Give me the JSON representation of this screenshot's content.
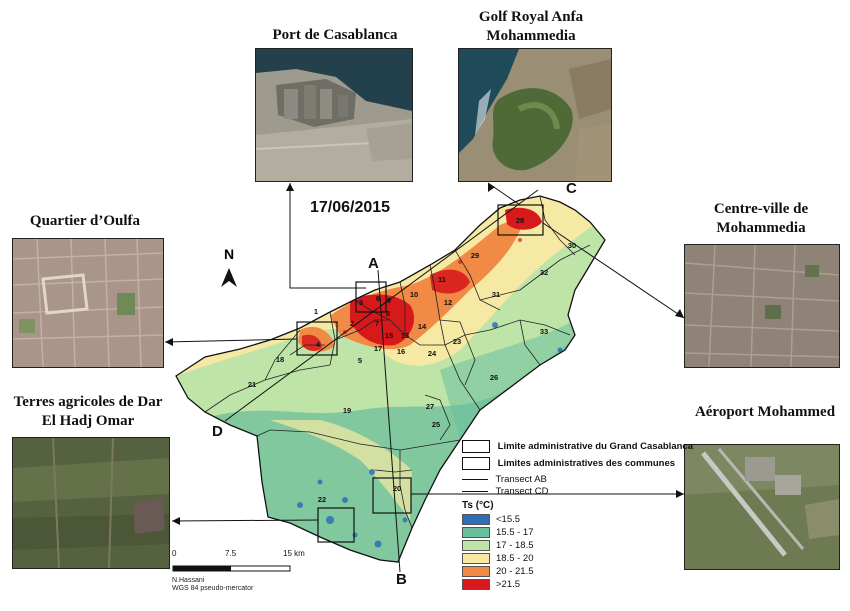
{
  "date": "17/06/2015",
  "north": "N",
  "transect_labels": {
    "a": "A",
    "b": "B",
    "c": "C",
    "d": "D"
  },
  "insets": {
    "port": "Port de Casablanca",
    "golf": "Golf Royal Anfa Mohammedia",
    "oulfa": "Quartier d’Oulfa",
    "centre": "Centre-ville de Mohammedia",
    "terres": "Terres agricoles de Dar El Hadj Omar",
    "aeroport": "Aéroport Mohammed"
  },
  "districts": [
    "1",
    "2",
    "3",
    "4",
    "5",
    "6",
    "7",
    "8",
    "9",
    "10",
    "11",
    "12",
    "13",
    "14",
    "15",
    "16",
    "17",
    "18",
    "19",
    "20",
    "21",
    "22",
    "23",
    "24",
    "25",
    "26",
    "27",
    "28",
    "29",
    "30",
    "31",
    "32",
    "33"
  ],
  "legend": {
    "limite_grand": "Limite administrative du Grand Casablanca",
    "limites_communes": "Limites administratives des communes",
    "transect_ab": "Transect AB",
    "transect_cd": "Transect CD",
    "ts_title": "Ts (°C)",
    "classes": [
      {
        "label": "<15.5",
        "color": "#2e6fb8"
      },
      {
        "label": "15.5 - 17",
        "color": "#6cbf9c"
      },
      {
        "label": "17 - 18.5",
        "color": "#bfe4a8"
      },
      {
        "label": "18.5 - 20",
        "color": "#f6e9a4"
      },
      {
        "label": "20 - 21.5",
        "color": "#f08a45"
      },
      {
        "label": ">21.5",
        "color": "#d7191c"
      }
    ]
  },
  "scale": {
    "l0": "0",
    "l1": "7.5",
    "l2": "15 km"
  },
  "credit": {
    "author": "N.Hassani",
    "projection": "WGS 84 pseudo-mercator"
  }
}
